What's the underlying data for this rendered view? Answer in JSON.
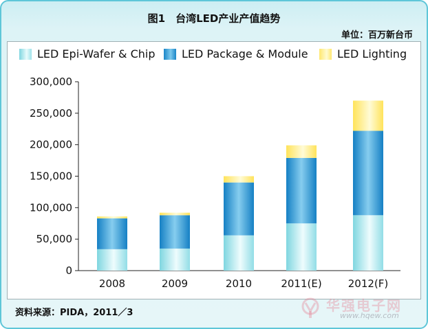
{
  "header": {
    "title": "图1　台湾LED产业产值趋势",
    "unit": "单位：百万新台币"
  },
  "source": "资料来源：PIDA，2011／3",
  "watermark": {
    "site_cn": "华强电子网",
    "url": "www.hqew.com"
  },
  "colors": {
    "epi": "#8ad9e3",
    "package": "#2b93d1",
    "lighting": "#ffe84d",
    "frame": "#5ec6d8"
  },
  "chart_data": {
    "type": "bar",
    "stacked": true,
    "categories": [
      "2008",
      "2009",
      "2010",
      "2011(E)",
      "2012(F)"
    ],
    "series": [
      {
        "name": "LED Epi-Wafer & Chip",
        "values": [
          34000,
          35000,
          56000,
          75000,
          88000
        ]
      },
      {
        "name": "LED Package & Module",
        "values": [
          49000,
          53000,
          84000,
          104000,
          134000
        ]
      },
      {
        "name": "LED Lighting",
        "values": [
          3000,
          4000,
          10000,
          20000,
          48000
        ]
      }
    ],
    "ylim": [
      0,
      300000
    ],
    "yticks": [
      0,
      50000,
      100000,
      150000,
      200000,
      250000,
      300000
    ],
    "ytick_labels": [
      "0",
      "50,000",
      "100,000",
      "150,000",
      "200,000",
      "250,000",
      "300,000"
    ],
    "grid": false,
    "legend_position": "top"
  }
}
